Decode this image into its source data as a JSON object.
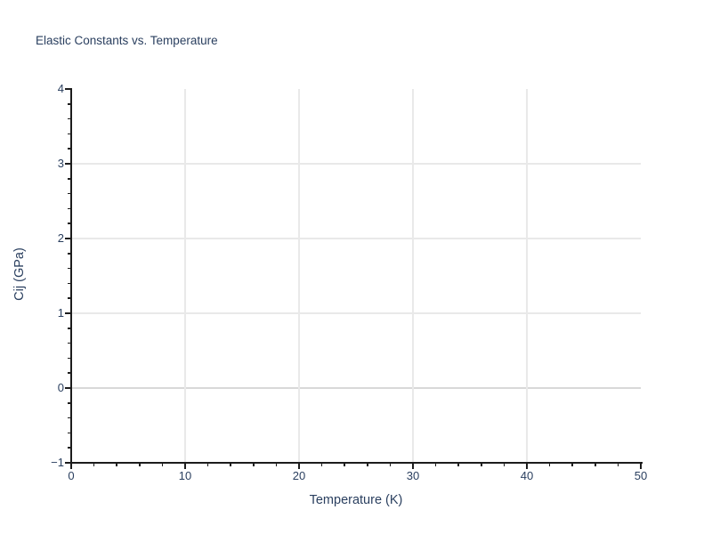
{
  "figure": {
    "title": "Elastic Constants vs. Temperature"
  },
  "colors": {
    "text": "#2a3f5f",
    "axis_line": "#1c1c1c",
    "grid": "#e9e9e9",
    "zeroline": "#d8d8d8",
    "background": "#ffffff"
  },
  "chart_data": {
    "type": "scatter",
    "title": "Elastic Constants vs. Temperature",
    "xlabel": "Temperature (K)",
    "ylabel": "Cij (GPa)",
    "xlim": [
      0,
      50
    ],
    "ylim": [
      -1,
      4
    ],
    "x_ticks": [
      0,
      10,
      20,
      30,
      40,
      50
    ],
    "x_tick_labels": [
      "0",
      "10",
      "20",
      "30",
      "40",
      "50"
    ],
    "x_minor_tick_step": 2,
    "y_ticks": [
      -1,
      0,
      1,
      2,
      3,
      4
    ],
    "y_tick_labels": [
      "−1",
      "0",
      "1",
      "2",
      "3",
      "4"
    ],
    "y_minor_tick_step": 0.2,
    "grid": true,
    "zeroline": 0,
    "legend": false,
    "series": []
  }
}
